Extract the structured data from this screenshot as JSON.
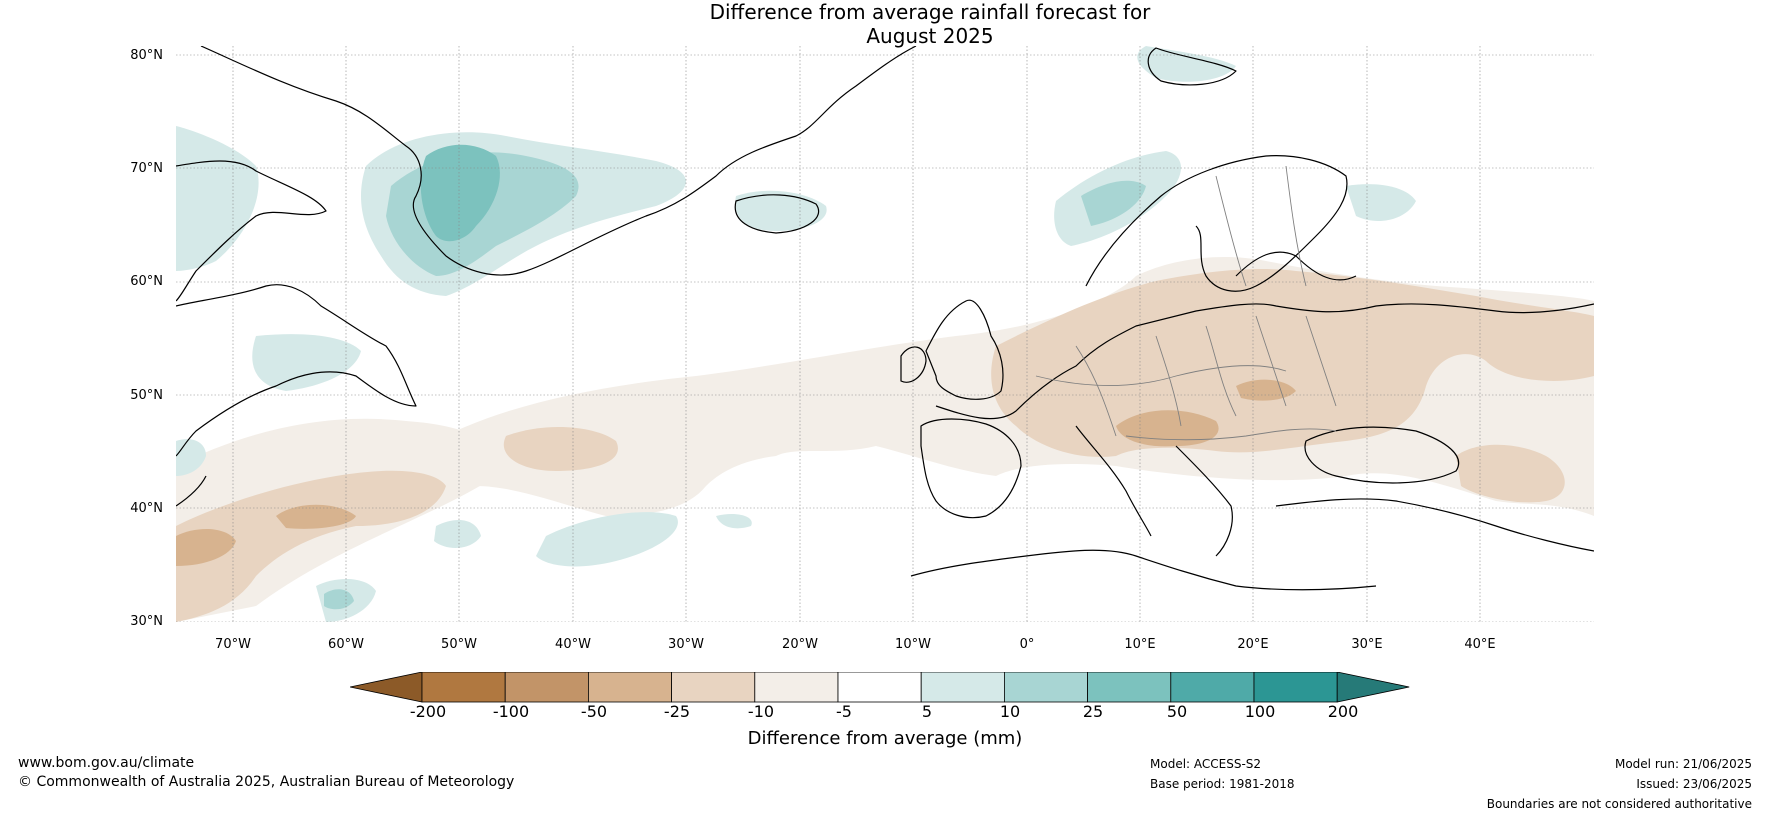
{
  "title": {
    "line1": "Difference from average rainfall forecast for",
    "line2": "August 2025"
  },
  "map": {
    "latitude_labels": [
      "80°N",
      "70°N",
      "60°N",
      "50°N",
      "40°N",
      "30°N"
    ],
    "longitude_labels": [
      "70°W",
      "60°W",
      "50°W",
      "40°W",
      "30°W",
      "20°W",
      "10°W",
      "0°",
      "10°E",
      "20°E",
      "30°E",
      "40°E"
    ],
    "extent": {
      "lon_min": -75,
      "lon_max": 50,
      "lat_min": 30,
      "lat_max": 81
    },
    "grid": true
  },
  "colorbar": {
    "title": "Difference from average (mm)",
    "ticks": [
      "-200",
      "-100",
      "-50",
      "-25",
      "-10",
      "-5",
      "5",
      "10",
      "25",
      "50",
      "100",
      "200"
    ],
    "colors": [
      "#8c5a28",
      "#b07840",
      "#c29468",
      "#d7b38f",
      "#e8d4c1",
      "#f3eee8",
      "#ffffff",
      "#d5e9e8",
      "#a8d5d3",
      "#7cc2be",
      "#4faaa8",
      "#2c9694",
      "#267a78"
    ]
  },
  "footer": {
    "website": "www.bom.gov.au/climate",
    "copyright": "© Commonwealth of Australia 2025, Australian Bureau of Meteorology",
    "model": "Model: ACCESS-S2",
    "base_period": "Base period: 1981-2018",
    "model_run": "Model run: 21/06/2025",
    "issued": "Issued: 23/06/2025",
    "disclaimer": "Boundaries are not considered authoritative"
  }
}
